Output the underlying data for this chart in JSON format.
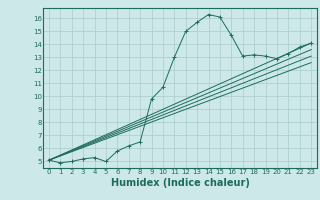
{
  "xlabel": "Humidex (Indice chaleur)",
  "bg_color": "#cce8e8",
  "line_color": "#1e6b5e",
  "grid_color": "#aacccc",
  "xlim": [
    -0.5,
    23.5
  ],
  "ylim": [
    4.5,
    16.8
  ],
  "xticks": [
    0,
    1,
    2,
    3,
    4,
    5,
    6,
    7,
    8,
    9,
    10,
    11,
    12,
    13,
    14,
    15,
    16,
    17,
    18,
    19,
    20,
    21,
    22,
    23
  ],
  "yticks": [
    5,
    6,
    7,
    8,
    9,
    10,
    11,
    12,
    13,
    14,
    15,
    16
  ],
  "main_x": [
    0,
    1,
    2,
    3,
    4,
    5,
    6,
    7,
    8,
    9,
    10,
    11,
    12,
    13,
    14,
    15,
    16,
    17,
    18,
    19,
    20,
    21,
    22,
    23
  ],
  "main_y": [
    5.1,
    4.9,
    5.0,
    5.2,
    5.3,
    5.0,
    5.8,
    6.2,
    6.5,
    9.8,
    10.7,
    13.0,
    15.0,
    15.7,
    16.3,
    16.1,
    14.7,
    13.1,
    13.2,
    13.1,
    12.9,
    13.3,
    13.8,
    14.1
  ],
  "ref_lines": [
    {
      "x": [
        0,
        23
      ],
      "y": [
        5.1,
        14.1
      ]
    },
    {
      "x": [
        0,
        23
      ],
      "y": [
        5.1,
        13.6
      ]
    },
    {
      "x": [
        0,
        23
      ],
      "y": [
        5.1,
        13.1
      ]
    },
    {
      "x": [
        0,
        23
      ],
      "y": [
        5.1,
        12.6
      ]
    }
  ],
  "xlabel_fontsize": 7,
  "tick_fontsize": 5,
  "linewidth": 0.7,
  "marker_size": 2.5,
  "marker_ew": 0.7
}
